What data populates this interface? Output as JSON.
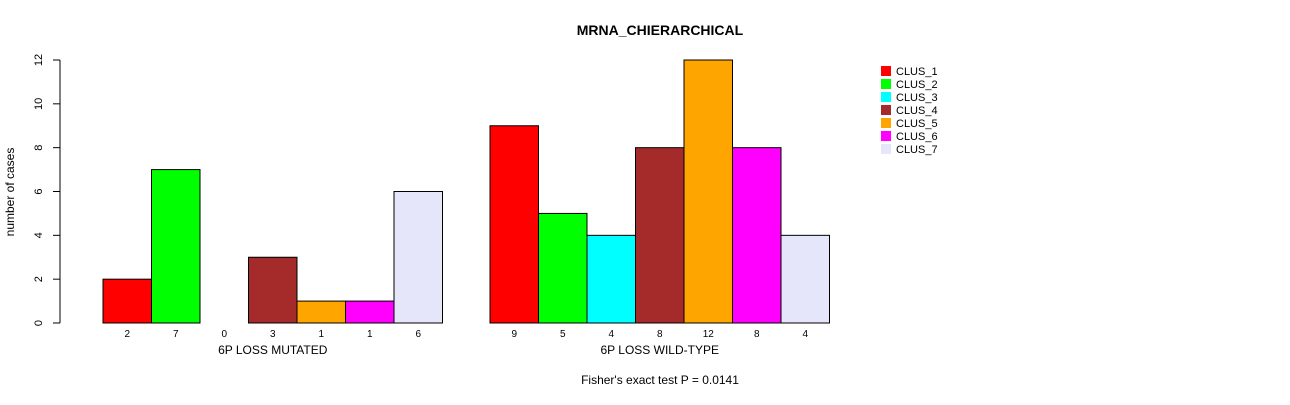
{
  "chart_data": {
    "type": "bar",
    "title": "MRNA_CHIERARCHICAL",
    "xlabel": "",
    "ylabel": "number of cases",
    "ylim": [
      0,
      12
    ],
    "yticks": [
      0,
      2,
      4,
      6,
      8,
      10,
      12
    ],
    "grid": false,
    "legend_position": "top-right",
    "groups": [
      "6P LOSS MUTATED",
      "6P LOSS WILD-TYPE"
    ],
    "series": [
      {
        "name": "CLUS_1",
        "color": "#ff0000",
        "values": [
          2,
          9
        ]
      },
      {
        "name": "CLUS_2",
        "color": "#00ff00",
        "values": [
          7,
          5
        ]
      },
      {
        "name": "CLUS_3",
        "color": "#00ffff",
        "values": [
          0,
          4
        ]
      },
      {
        "name": "CLUS_4",
        "color": "#a52a2a",
        "values": [
          3,
          8
        ]
      },
      {
        "name": "CLUS_5",
        "color": "#ffa500",
        "values": [
          1,
          12
        ]
      },
      {
        "name": "CLUS_6",
        "color": "#ff00ff",
        "values": [
          1,
          8
        ]
      },
      {
        "name": "CLUS_7",
        "color": "#e6e6fa",
        "values": [
          6,
          4
        ]
      }
    ],
    "footer": "Fisher's exact test P = 0.0141"
  }
}
